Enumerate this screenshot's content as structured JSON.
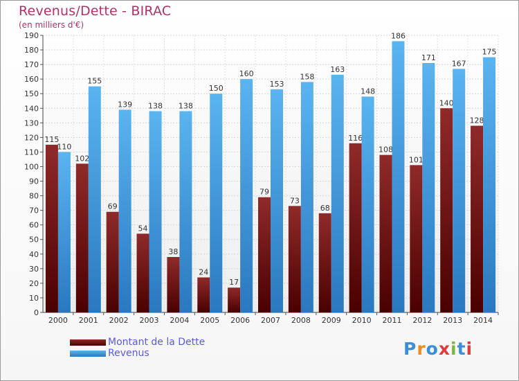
{
  "chart_data": {
    "type": "bar",
    "title": "Revenus/Dette - BIRAC",
    "subtitle": "(en milliers d'€)",
    "categories": [
      "2000",
      "2001",
      "2002",
      "2003",
      "2004",
      "2005",
      "2006",
      "2007",
      "2008",
      "2009",
      "2010",
      "2011",
      "2012",
      "2013",
      "2014"
    ],
    "series": [
      {
        "name": "Montant de la Dette",
        "color": "#7a1a1a",
        "values": [
          115,
          102,
          69,
          54,
          38,
          24,
          17,
          79,
          73,
          68,
          116,
          108,
          101,
          140,
          128
        ]
      },
      {
        "name": "Revenus",
        "color": "#4aa3e6",
        "values": [
          110,
          155,
          139,
          138,
          138,
          150,
          160,
          153,
          158,
          163,
          148,
          186,
          171,
          167,
          175
        ]
      }
    ],
    "ylim": [
      0,
      190
    ],
    "yticks": [
      0,
      10,
      20,
      30,
      40,
      50,
      60,
      70,
      80,
      90,
      100,
      110,
      120,
      130,
      140,
      150,
      160,
      170,
      180,
      190
    ],
    "grid": true,
    "legend_position": "bottom-left"
  },
  "logo": {
    "text": "Proxiti",
    "colors": [
      "#3a8fd6",
      "#f08a1c",
      "#3a8fd6",
      "#e23a3a",
      "#7ab83a",
      "#3a8fd6",
      "#e23a3a"
    ]
  }
}
